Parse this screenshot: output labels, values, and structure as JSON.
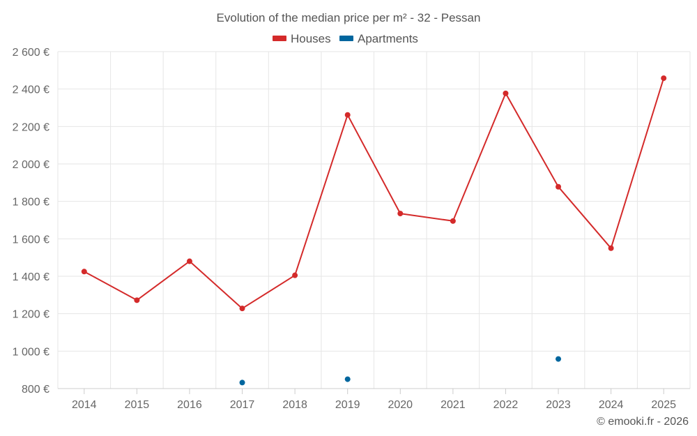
{
  "chart_data": {
    "type": "line",
    "title": "Evolution of the median price per m² - 32 - Pessan",
    "xlabel": "",
    "ylabel": "",
    "categories": [
      "2014",
      "2015",
      "2016",
      "2017",
      "2018",
      "2019",
      "2020",
      "2021",
      "2022",
      "2023",
      "2024",
      "2025"
    ],
    "ylim": [
      800,
      2600
    ],
    "yticks": [
      800,
      1000,
      1200,
      1400,
      1600,
      1800,
      2000,
      2200,
      2400,
      2600
    ],
    "ytick_labels": [
      "800 €",
      "1 000 €",
      "1 200 €",
      "1 400 €",
      "1 600 €",
      "1 800 €",
      "2 000 €",
      "2 200 €",
      "2 400 €",
      "2 600 €"
    ],
    "grid": true,
    "legend_position": "top-center",
    "series": [
      {
        "name": "Houses",
        "color": "#d42a2a",
        "values": [
          1425,
          1272,
          1480,
          1228,
          1405,
          2262,
          1735,
          1695,
          2377,
          1878,
          1550,
          2458
        ]
      },
      {
        "name": "Apartments",
        "color": "#00669e",
        "values": [
          null,
          null,
          null,
          832,
          null,
          850,
          null,
          null,
          null,
          958,
          null,
          null
        ]
      }
    ]
  },
  "credit": "© emooki.fr - 2026"
}
